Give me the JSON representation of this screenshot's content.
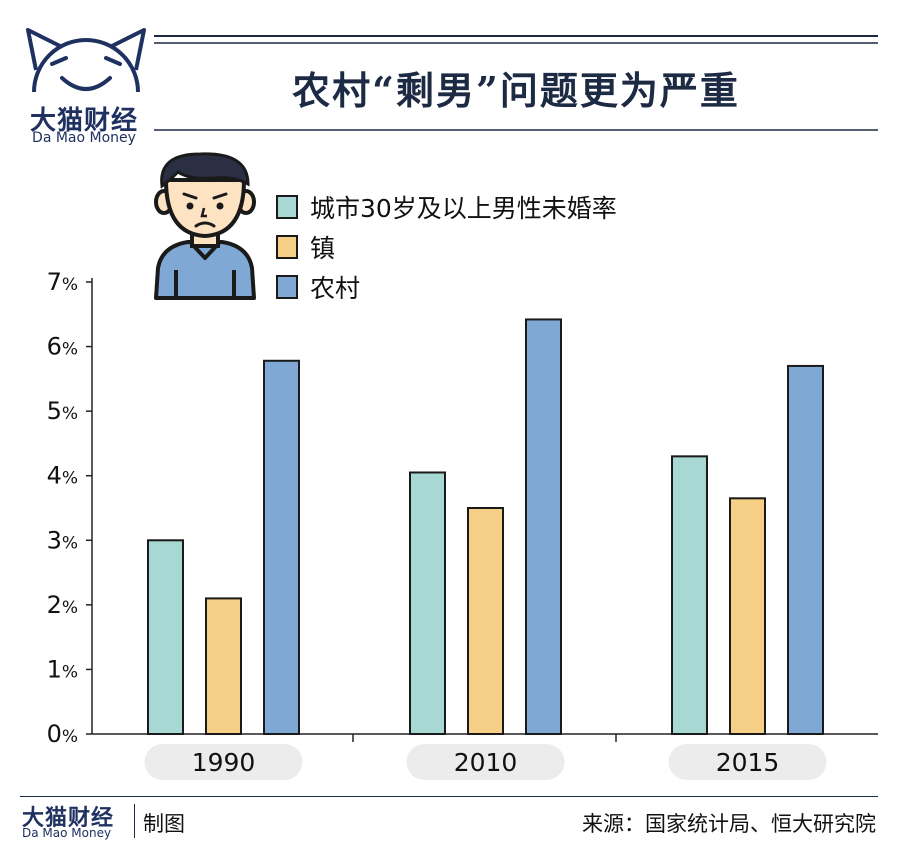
{
  "brand": {
    "name_cn": "大猫财经",
    "name_en": "Da Mao Money"
  },
  "header": {
    "title": "农村“剩男”问题更为严重"
  },
  "colors": {
    "urban": "#a8d8d4",
    "town": "#f6cf86",
    "rural": "#7fa8d4",
    "navy": "#1f3160",
    "pill": "#ececec"
  },
  "icons": {
    "logo": "cat-face-logo-icon",
    "person": "sad-man-icon"
  },
  "chart_data": {
    "type": "bar",
    "categories": [
      "1990",
      "2010",
      "2015"
    ],
    "series": [
      {
        "name": "城市30岁及以上男性未婚率",
        "values": [
          3.0,
          4.05,
          4.3
        ]
      },
      {
        "name": "镇",
        "values": [
          2.1,
          3.5,
          3.65
        ]
      },
      {
        "name": "农村",
        "values": [
          5.78,
          6.42,
          5.7
        ]
      }
    ],
    "ylim": [
      0,
      7
    ],
    "yticks": [
      "0%",
      "1%",
      "2%",
      "3%",
      "4%",
      "5%",
      "6%",
      "7%"
    ],
    "legend_position": "top-left",
    "grid": false
  },
  "footer": {
    "made_by": "制图",
    "source": "来源：国家统计局、恒大研究院"
  }
}
